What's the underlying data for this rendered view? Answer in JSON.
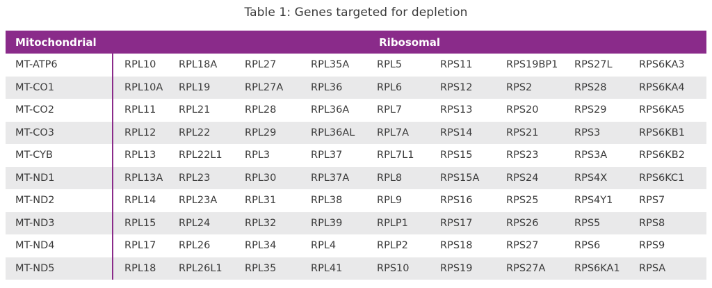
{
  "caption": "Table 1: Genes targeted for depletion",
  "headers": {
    "mitochondrial": "Mitochondrial",
    "ribosomal": "Ribosomal"
  },
  "accent_color": "#8a2b8a",
  "rows": [
    {
      "mito": "MT-ATP6",
      "ribo": [
        "RPL10",
        "RPL18A",
        "RPL27",
        "RPL35A",
        "RPL5",
        "RPS11",
        "RPS19BP1",
        "RPS27L",
        "RPS6KA3"
      ]
    },
    {
      "mito": "MT-CO1",
      "ribo": [
        "RPL10A",
        "RPL19",
        "RPL27A",
        "RPL36",
        "RPL6",
        "RPS12",
        "RPS2",
        "RPS28",
        "RPS6KA4"
      ]
    },
    {
      "mito": "MT-CO2",
      "ribo": [
        "RPL11",
        "RPL21",
        "RPL28",
        "RPL36A",
        "RPL7",
        "RPS13",
        "RPS20",
        "RPS29",
        "RPS6KA5"
      ]
    },
    {
      "mito": "MT-CO3",
      "ribo": [
        "RPL12",
        "RPL22",
        "RPL29",
        "RPL36AL",
        "RPL7A",
        "RPS14",
        "RPS21",
        "RPS3",
        "RPS6KB1"
      ]
    },
    {
      "mito": "MT-CYB",
      "ribo": [
        "RPL13",
        "RPL22L1",
        "RPL3",
        "RPL37",
        "RPL7L1",
        "RPS15",
        "RPS23",
        "RPS3A",
        "RPS6KB2"
      ]
    },
    {
      "mito": "MT-ND1",
      "ribo": [
        "RPL13A",
        "RPL23",
        "RPL30",
        "RPL37A",
        "RPL8",
        "RPS15A",
        "RPS24",
        "RPS4X",
        "RPS6KC1"
      ]
    },
    {
      "mito": "MT-ND2",
      "ribo": [
        "RPL14",
        "RPL23A",
        "RPL31",
        "RPL38",
        "RPL9",
        "RPS16",
        "RPS25",
        "RPS4Y1",
        "RPS7"
      ]
    },
    {
      "mito": "MT-ND3",
      "ribo": [
        "RPL15",
        "RPL24",
        "RPL32",
        "RPL39",
        "RPLP1",
        "RPS17",
        "RPS26",
        "RPS5",
        "RPS8"
      ]
    },
    {
      "mito": "MT-ND4",
      "ribo": [
        "RPL17",
        "RPL26",
        "RPL34",
        "RPL4",
        "RPLP2",
        "RPS18",
        "RPS27",
        "RPS6",
        "RPS9"
      ]
    },
    {
      "mito": "MT-ND5",
      "ribo": [
        "RPL18",
        "RPL26L1",
        "RPL35",
        "RPL41",
        "RPS10",
        "RPS19",
        "RPS27A",
        "RPS6KA1",
        "RPSA"
      ]
    }
  ]
}
